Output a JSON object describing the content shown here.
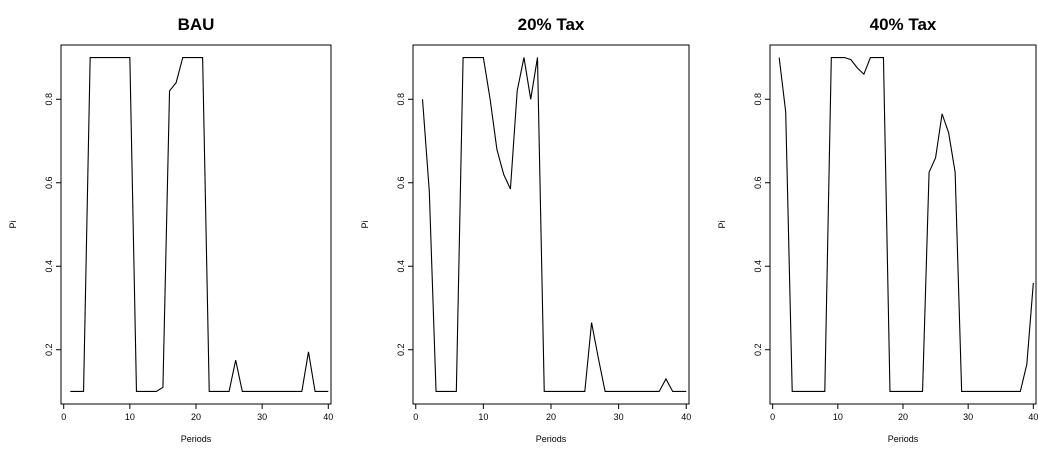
{
  "chart_data": [
    {
      "type": "line",
      "title": "BAU",
      "xlabel": "Periods",
      "ylabel": "Pi",
      "xlim": [
        0,
        40
      ],
      "ylim": [
        0.07,
        0.93
      ],
      "xticks": [
        0,
        10,
        20,
        30,
        40
      ],
      "yticks": [
        0.2,
        0.4,
        0.6,
        0.8
      ],
      "grid": false,
      "series": [
        {
          "x": [
            1,
            2,
            3,
            4,
            5,
            6,
            7,
            8,
            9,
            10,
            11,
            12,
            13,
            14,
            15,
            16,
            17,
            18,
            19,
            20,
            21,
            22,
            23,
            24,
            25,
            26,
            27,
            28,
            29,
            30,
            31,
            32,
            33,
            34,
            35,
            36,
            37,
            38,
            39,
            40
          ],
          "values": [
            0.1,
            0.1,
            0.1,
            0.9,
            0.9,
            0.9,
            0.9,
            0.9,
            0.9,
            0.9,
            0.1,
            0.1,
            0.1,
            0.1,
            0.11,
            0.82,
            0.84,
            0.9,
            0.9,
            0.9,
            0.9,
            0.1,
            0.1,
            0.1,
            0.1,
            0.175,
            0.1,
            0.1,
            0.1,
            0.1,
            0.1,
            0.1,
            0.1,
            0.1,
            0.1,
            0.1,
            0.195,
            0.1,
            0.1,
            0.1
          ]
        }
      ]
    },
    {
      "type": "line",
      "title": "20% Tax",
      "xlabel": "Periods",
      "ylabel": "Pi",
      "xlim": [
        0,
        40
      ],
      "ylim": [
        0.07,
        0.93
      ],
      "xticks": [
        0,
        10,
        20,
        30,
        40
      ],
      "yticks": [
        0.2,
        0.4,
        0.6,
        0.8
      ],
      "grid": false,
      "series": [
        {
          "x": [
            1,
            2,
            3,
            4,
            5,
            6,
            7,
            8,
            9,
            10,
            11,
            12,
            13,
            14,
            15,
            16,
            17,
            18,
            19,
            20,
            21,
            22,
            23,
            24,
            25,
            26,
            27,
            28,
            29,
            30,
            31,
            32,
            33,
            34,
            35,
            36,
            37,
            38,
            39,
            40
          ],
          "values": [
            0.8,
            0.58,
            0.1,
            0.1,
            0.1,
            0.1,
            0.9,
            0.9,
            0.9,
            0.9,
            0.8,
            0.68,
            0.62,
            0.585,
            0.82,
            0.9,
            0.8,
            0.9,
            0.1,
            0.1,
            0.1,
            0.1,
            0.1,
            0.1,
            0.1,
            0.265,
            0.18,
            0.1,
            0.1,
            0.1,
            0.1,
            0.1,
            0.1,
            0.1,
            0.1,
            0.1,
            0.13,
            0.1,
            0.1,
            0.1
          ]
        }
      ]
    },
    {
      "type": "line",
      "title": "40% Tax",
      "xlabel": "Periods",
      "ylabel": "Pi",
      "xlim": [
        0,
        40
      ],
      "ylim": [
        0.07,
        0.93
      ],
      "xticks": [
        0,
        10,
        20,
        30,
        40
      ],
      "yticks": [
        0.2,
        0.4,
        0.6,
        0.8
      ],
      "grid": false,
      "series": [
        {
          "x": [
            1,
            2,
            3,
            4,
            5,
            6,
            7,
            8,
            9,
            10,
            11,
            12,
            13,
            14,
            15,
            16,
            17,
            18,
            19,
            20,
            21,
            22,
            23,
            24,
            25,
            26,
            27,
            28,
            29,
            30,
            31,
            32,
            33,
            34,
            35,
            36,
            37,
            38,
            39,
            40
          ],
          "values": [
            0.9,
            0.77,
            0.1,
            0.1,
            0.1,
            0.1,
            0.1,
            0.1,
            0.9,
            0.9,
            0.9,
            0.895,
            0.875,
            0.86,
            0.9,
            0.9,
            0.9,
            0.1,
            0.1,
            0.1,
            0.1,
            0.1,
            0.1,
            0.625,
            0.66,
            0.765,
            0.72,
            0.625,
            0.1,
            0.1,
            0.1,
            0.1,
            0.1,
            0.1,
            0.1,
            0.1,
            0.1,
            0.1,
            0.165,
            0.36
          ]
        }
      ]
    }
  ]
}
